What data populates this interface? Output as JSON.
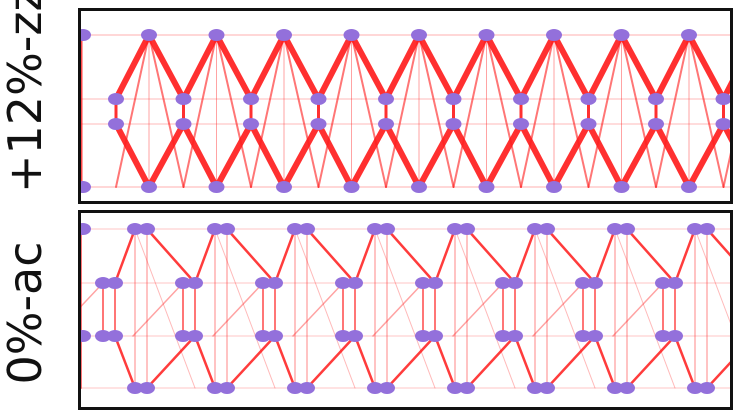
{
  "panels": [
    {
      "label": "+12%-zz",
      "style": "zigzag",
      "edge_color": "#ff1a1a",
      "node_color": "#9370db"
    },
    {
      "label": "0%-ac",
      "style": "armchair",
      "edge_color": "#ff1a1a",
      "node_color": "#9370db"
    }
  ]
}
